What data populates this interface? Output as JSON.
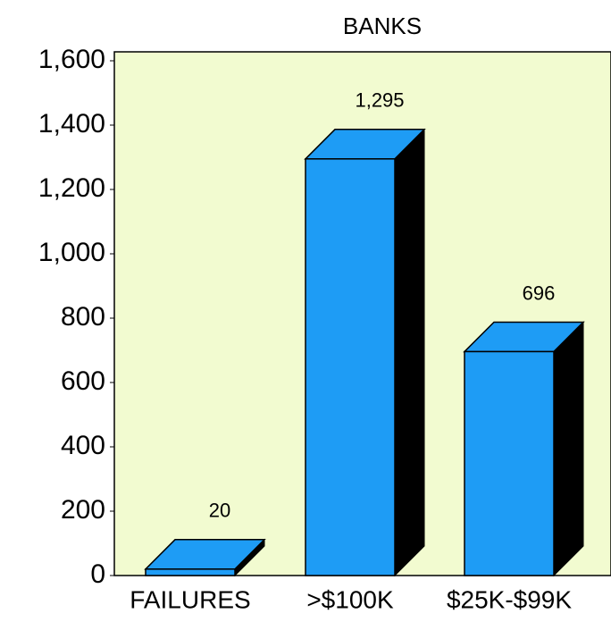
{
  "chart_data": {
    "type": "bar3d",
    "title": "BANKS",
    "categories": [
      "FAILURES",
      ">$100K",
      "$25K-$99K"
    ],
    "values": [
      20,
      1295,
      696
    ],
    "value_labels": [
      "20",
      "1,295",
      "696"
    ],
    "color": "#1e9cf5",
    "ylim": [
      0,
      1600
    ],
    "yticks": [
      0,
      200,
      400,
      600,
      800,
      {
        "value": 1000,
        "label": "1,000"
      },
      {
        "value": 1200,
        "label": "1,200"
      },
      {
        "value": 1400,
        "label": "1,400"
      },
      {
        "value": 1600,
        "label": "1,600"
      }
    ]
  }
}
